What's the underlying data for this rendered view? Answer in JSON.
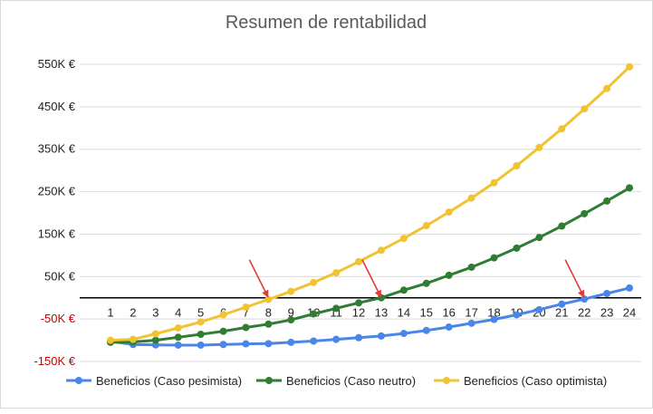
{
  "chart_data": {
    "type": "line",
    "title": "Resumen de rentabilidad",
    "xlabel": "",
    "ylabel": "",
    "categories": [
      "1",
      "2",
      "3",
      "4",
      "5",
      "6",
      "7",
      "8",
      "9",
      "10",
      "11",
      "12",
      "13",
      "14",
      "15",
      "16",
      "17",
      "18",
      "19",
      "20",
      "21",
      "22",
      "23",
      "24"
    ],
    "y_ticks": [
      {
        "value": 550000,
        "label": "550K €",
        "negative": false
      },
      {
        "value": 450000,
        "label": "450K €",
        "negative": false
      },
      {
        "value": 350000,
        "label": "350K €",
        "negative": false
      },
      {
        "value": 250000,
        "label": "250K €",
        "negative": false
      },
      {
        "value": 150000,
        "label": "150K €",
        "negative": false
      },
      {
        "value": 50000,
        "label": "50K €",
        "negative": false
      },
      {
        "value": -50000,
        "label": "-50K €",
        "negative": true
      },
      {
        "value": -150000,
        "label": "-150K €",
        "negative": true
      }
    ],
    "ylim": [
      -150000,
      550000
    ],
    "grid": true,
    "legend_position": "bottom",
    "series": [
      {
        "name": "Beneficios (Caso pesimista)",
        "color": "#4a86e8",
        "values": [
          -103000,
          -110000,
          -111000,
          -111500,
          -111500,
          -110000,
          -108500,
          -108000,
          -105000,
          -102000,
          -98000,
          -94000,
          -90000,
          -84000,
          -77000,
          -69000,
          -60000,
          -51000,
          -40000,
          -28000,
          -15000,
          -3000,
          10000,
          23000
        ]
      },
      {
        "name": "Beneficios (Caso neutro)",
        "color": "#2e7d32",
        "values": [
          -105000,
          -104000,
          -100000,
          -93000,
          -86000,
          -79000,
          -70000,
          -62000,
          -52000,
          -38000,
          -25000,
          -12000,
          0,
          18000,
          34000,
          53000,
          72000,
          94000,
          117000,
          142000,
          169000,
          198000,
          228000,
          259000
        ]
      },
      {
        "name": "Beneficios (Caso optimista)",
        "color": "#f1c232",
        "values": [
          -100000,
          -98000,
          -85000,
          -71000,
          -57000,
          -40000,
          -22000,
          -4000,
          15000,
          36000,
          59000,
          85000,
          112000,
          140000,
          170000,
          202000,
          235000,
          271000,
          311000,
          354000,
          398000,
          445000,
          493000,
          544000
        ]
      }
    ],
    "annotations": [
      {
        "type": "arrow",
        "target_index": 8,
        "target_value": 0,
        "color": "#e53935"
      },
      {
        "type": "arrow",
        "target_index": 13,
        "target_value": 0,
        "color": "#e53935"
      },
      {
        "type": "arrow",
        "target_index": 22,
        "target_value": 0,
        "color": "#e53935"
      }
    ],
    "colors": {
      "title": "#595959",
      "axis_text": "#222222",
      "negative_text": "#cc0000",
      "grid": "#d9d9d9",
      "zero_line": "#000000"
    }
  }
}
